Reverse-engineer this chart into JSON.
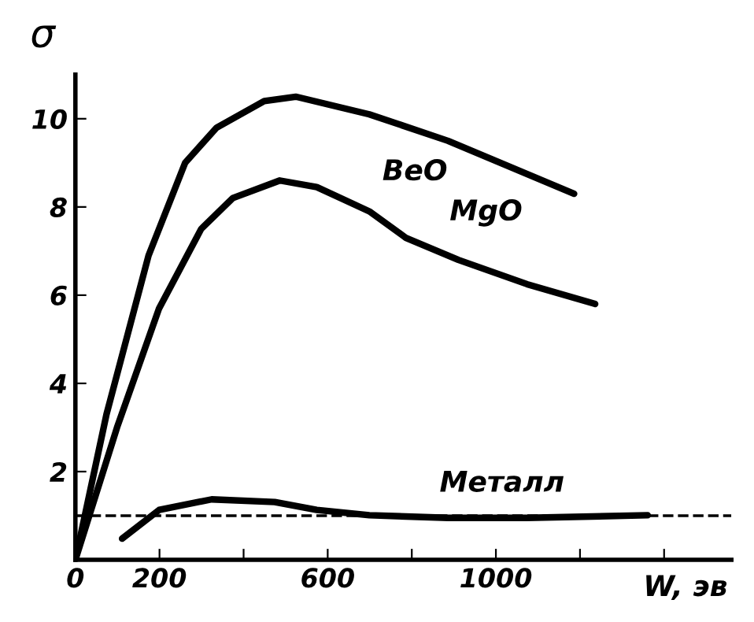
{
  "chart_data": {
    "type": "line",
    "ylabel": "σ",
    "xlabel": "W, эв",
    "xlim": [
      0,
      1560
    ],
    "ylim": [
      0,
      11
    ],
    "xticks": [
      0,
      200,
      {
        "value": 400,
        "label": null
      },
      600,
      {
        "value": 800,
        "label": null
      },
      1000,
      {
        "value": 1200,
        "label": null
      },
      {
        "value": 1400,
        "label": null
      }
    ],
    "yticks": [
      2,
      4,
      6,
      8,
      10
    ],
    "grid": false,
    "legend": false,
    "marker": "none",
    "line_style": "solid",
    "series": [
      {
        "name": "BeO",
        "color": "#000000",
        "x": [
          0,
          74,
          174,
          261,
          336,
          449,
          524,
          699,
          886,
          1011,
          1186
        ],
        "values": [
          0,
          3.3,
          6.9,
          9.0,
          9.8,
          10.4,
          10.5,
          10.1,
          9.5,
          9.0,
          8.3
        ]
      },
      {
        "name": "MgO",
        "color": "#000000",
        "x": [
          0,
          99,
          199,
          299,
          374,
          486,
          574,
          699,
          786,
          911,
          1074,
          1236
        ],
        "values": [
          0,
          3.0,
          5.7,
          7.5,
          8.2,
          8.6,
          8.45,
          7.9,
          7.3,
          6.8,
          6.25,
          5.8
        ]
      },
      {
        "name": "Металл",
        "color": "#000000",
        "x": [
          111,
          199,
          324,
          474,
          574,
          699,
          886,
          1074,
          1361
        ],
        "values": [
          0.48,
          1.13,
          1.37,
          1.31,
          1.13,
          1.01,
          0.95,
          0.95,
          1.01
        ]
      }
    ],
    "ref_lines": [
      {
        "axis": "y",
        "value": 1,
        "color": "#000000",
        "line_style": "dashed"
      }
    ]
  }
}
